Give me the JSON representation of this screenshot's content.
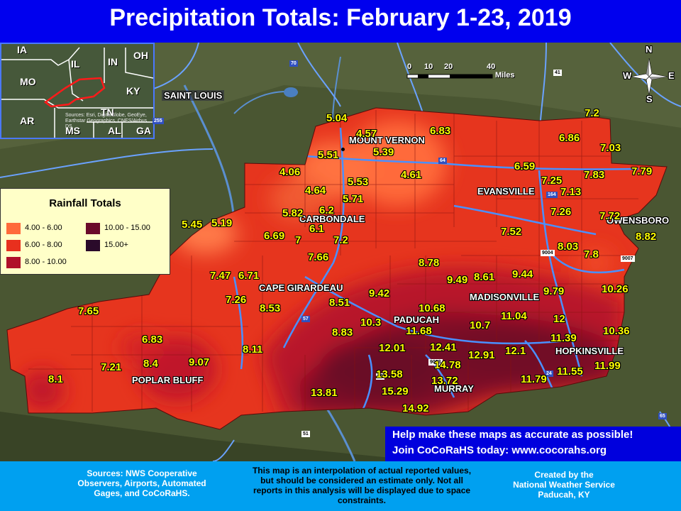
{
  "title": "Precipitation Totals: February 1-23, 2019",
  "legend": {
    "title": "Rainfall Totals",
    "bins": [
      {
        "label": "4.00 - 6.00",
        "color": "#ff6a3a"
      },
      {
        "label": "10.00 - 15.00",
        "color": "#6a0a2a"
      },
      {
        "label": "6.00 - 8.00",
        "color": "#e8301e"
      },
      {
        "label": "15.00+",
        "color": "#2a0a2a"
      },
      {
        "label": "8.00 - 10.00",
        "color": "#b0102a"
      }
    ]
  },
  "inset": {
    "states": [
      "IA",
      "IL",
      "IN",
      "OH",
      "MO",
      "KY",
      "AR",
      "TN",
      "MS",
      "AL",
      "GA"
    ],
    "credit": "Sources: Esri, DigitalGlobe, GeoEye, Earthstar Geographics, CNES/Airbus DS"
  },
  "scale": {
    "ticks": [
      "0",
      "10",
      "20",
      "40"
    ],
    "unit": "Miles"
  },
  "compass": {
    "n": "N",
    "s": "S",
    "e": "E",
    "w": "W"
  },
  "cities": [
    {
      "name": "SAINT LOUIS",
      "id": "saint-louis"
    },
    {
      "name": "MOUNT VERNON",
      "id": "mount-vernon"
    },
    {
      "name": "EVANSVILLE",
      "id": "evansville"
    },
    {
      "name": "CARBONDALE",
      "id": "carbondale"
    },
    {
      "name": "OWENSBORO",
      "id": "owensboro"
    },
    {
      "name": "CAPE GIRARDEAU",
      "id": "cape-girardeau"
    },
    {
      "name": "MADISONVILLE",
      "id": "madisonville"
    },
    {
      "name": "PADUCAH",
      "id": "paducah"
    },
    {
      "name": "HOPKINSVILLE",
      "id": "hopkinsville"
    },
    {
      "name": "POPLAR BLUFF",
      "id": "poplar-bluff"
    },
    {
      "name": "MURRAY",
      "id": "murray"
    }
  ],
  "values": [
    "5.04",
    "4.57",
    "6.83",
    "7.2",
    "5.51",
    "5.39",
    "6.86",
    "7.03",
    "4.06",
    "5.53",
    "4.61",
    "6.59",
    "7.25",
    "7.83",
    "7.79",
    "4.64",
    "5.71",
    "7.13",
    "5.82",
    "6.2",
    "7.26",
    "7.72",
    "5.45",
    "5.19",
    "6.1",
    "7.52",
    "8.82",
    "6.69",
    "7",
    "7.2",
    "8.03",
    "7.8",
    "7.66",
    "8.78",
    "7.47",
    "6.71",
    "9.49",
    "8.61",
    "9.44",
    "10.26",
    "7.26",
    "8.53",
    "9.42",
    "9.79",
    "7.65",
    "8.51",
    "10.68",
    "10.3",
    "11.04",
    "12",
    "8.83",
    "11.68",
    "10.7",
    "10.36",
    "6.83",
    "11.39",
    "8.11",
    "12.01",
    "12.41",
    "7.21",
    "8.4",
    "9.07",
    "12.91",
    "12.1",
    "14.78",
    "11.55",
    "11.99",
    "8.1",
    "13.58",
    "13.72",
    "11.79",
    "13.81",
    "15.29",
    "14.92"
  ],
  "help": {
    "line1": "Help make these maps as accurate as possible!",
    "line2": "Join CoCoRaHS today: www.cocorahs.org"
  },
  "highways": [
    "70",
    "64",
    "164",
    "57",
    "55",
    "24",
    "9004",
    "9003",
    "9007",
    "41",
    "69",
    "51",
    "65",
    "255"
  ],
  "footer": {
    "sources": [
      "Sources: NWS Cooperative",
      "Observers, Airports, Automated",
      "Gages, and CoCoRaHS."
    ],
    "disclaimer": [
      "This map is an interpolation of actual reported values,",
      "but should be considered an estimate only. Not all",
      "reports in this analysis will be displayed due to space",
      "constraints."
    ],
    "credit": [
      "Created by the",
      "National Weather Service",
      "Paducah, KY"
    ]
  }
}
